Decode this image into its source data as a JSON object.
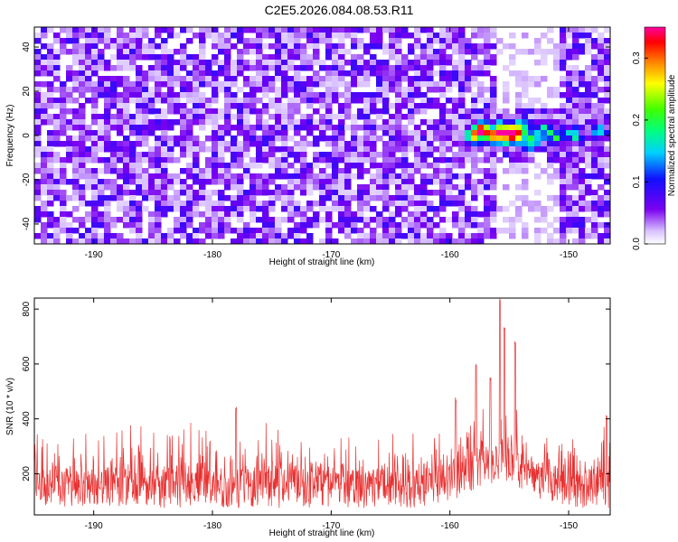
{
  "title": "C2E5.2026.084.08.53.R11",
  "colors": {
    "signal": "#e83030",
    "axis": "#000000"
  },
  "chart_data": [
    {
      "type": "heatmap",
      "xlabel": "Height of straight line (km)",
      "ylabel": "Frequency (Hz)",
      "xlim": [
        -195.0,
        -146.5
      ],
      "ylim": [
        -49,
        49
      ],
      "xticks": [
        -190,
        -180,
        -170,
        -160,
        -150
      ],
      "yticks": [
        -40,
        -20,
        0,
        20,
        40
      ],
      "colorbar": {
        "label": "Normalized spectral amplitude",
        "range": [
          0.0,
          0.35
        ],
        "ticks": [
          0.0,
          0.1,
          0.2,
          0.3
        ]
      },
      "noise_level": 0.05,
      "hotspots": [
        {
          "x": -158.0,
          "y": 0,
          "amp": 0.28
        },
        {
          "x": -157.2,
          "y": 3,
          "amp": 0.33
        },
        {
          "x": -156.2,
          "y": -1,
          "amp": 0.3
        },
        {
          "x": -155.5,
          "y": 2,
          "amp": 0.32
        },
        {
          "x": -154.8,
          "y": 0,
          "amp": 0.34
        },
        {
          "x": -154.0,
          "y": 4,
          "amp": 0.27
        },
        {
          "x": -153.2,
          "y": -2,
          "amp": 0.22
        },
        {
          "x": -152.0,
          "y": 3,
          "amp": 0.18
        },
        {
          "x": -151.0,
          "y": -1,
          "amp": 0.15
        },
        {
          "x": -149.5,
          "y": 0,
          "amp": 0.12
        },
        {
          "x": -147.5,
          "y": 2,
          "amp": 0.14
        }
      ]
    },
    {
      "type": "line",
      "xlabel": "Height of straight line (km)",
      "ylabel": "SNR (10 * v/v)",
      "xlim": [
        -195.0,
        -146.5
      ],
      "ylim": [
        50,
        840
      ],
      "xticks": [
        -190,
        -180,
        -170,
        -160,
        -150
      ],
      "yticks": [
        200,
        400,
        600,
        800
      ],
      "baseline": 140,
      "noise_amplitude": 90,
      "peaks": [
        {
          "x": -155.8,
          "y": 840
        },
        {
          "x": -155.4,
          "y": 740
        },
        {
          "x": -154.5,
          "y": 690
        },
        {
          "x": -157.8,
          "y": 610
        },
        {
          "x": -156.6,
          "y": 560
        },
        {
          "x": -159.5,
          "y": 480
        },
        {
          "x": -178.0,
          "y": 450
        },
        {
          "x": -146.8,
          "y": 420
        }
      ]
    }
  ]
}
